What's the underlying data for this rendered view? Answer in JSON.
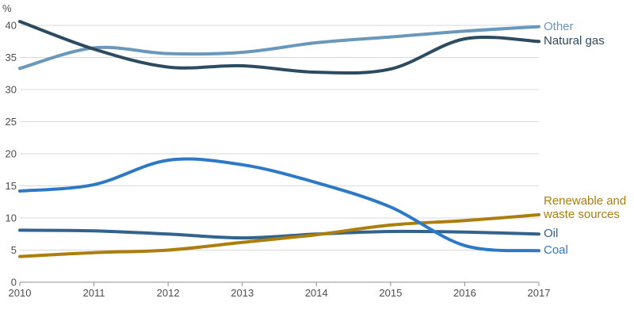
{
  "chart_data": {
    "type": "line",
    "title": "",
    "xlabel": "",
    "ylabel": "%",
    "x": [
      2010,
      2011,
      2012,
      2013,
      2014,
      2015,
      2016,
      2017
    ],
    "ylim": [
      0,
      40
    ],
    "yticks": [
      0,
      5,
      10,
      15,
      20,
      25,
      30,
      35,
      40
    ],
    "grid": true,
    "legend_position": "right-end-of-line-labels",
    "series": [
      {
        "name": "Other",
        "color": "#6A97BC",
        "values": [
          33.3,
          36.5,
          35.6,
          35.8,
          37.3,
          38.2,
          39.1,
          39.8
        ]
      },
      {
        "name": "Natural gas",
        "color": "#2C4A60",
        "values": [
          40.6,
          36.3,
          33.5,
          33.7,
          32.7,
          33.2,
          37.9,
          37.5
        ]
      },
      {
        "name": "Renewable and waste sources",
        "color": "#AB7E0E",
        "values": [
          4.0,
          4.6,
          5.0,
          6.2,
          7.4,
          8.9,
          9.6,
          10.5
        ]
      },
      {
        "name": "Oil",
        "color": "#32638F",
        "values": [
          8.1,
          8.0,
          7.5,
          6.9,
          7.5,
          7.9,
          7.8,
          7.5
        ]
      },
      {
        "name": "Coal",
        "color": "#2E79C6",
        "values": [
          14.2,
          15.2,
          19.0,
          18.3,
          15.5,
          11.7,
          5.7,
          4.9
        ]
      }
    ],
    "style_colors": {
      "gridline": "#d9d9d9",
      "axis": "#8c8c8c",
      "tick_text": "#4d4d4d"
    }
  }
}
